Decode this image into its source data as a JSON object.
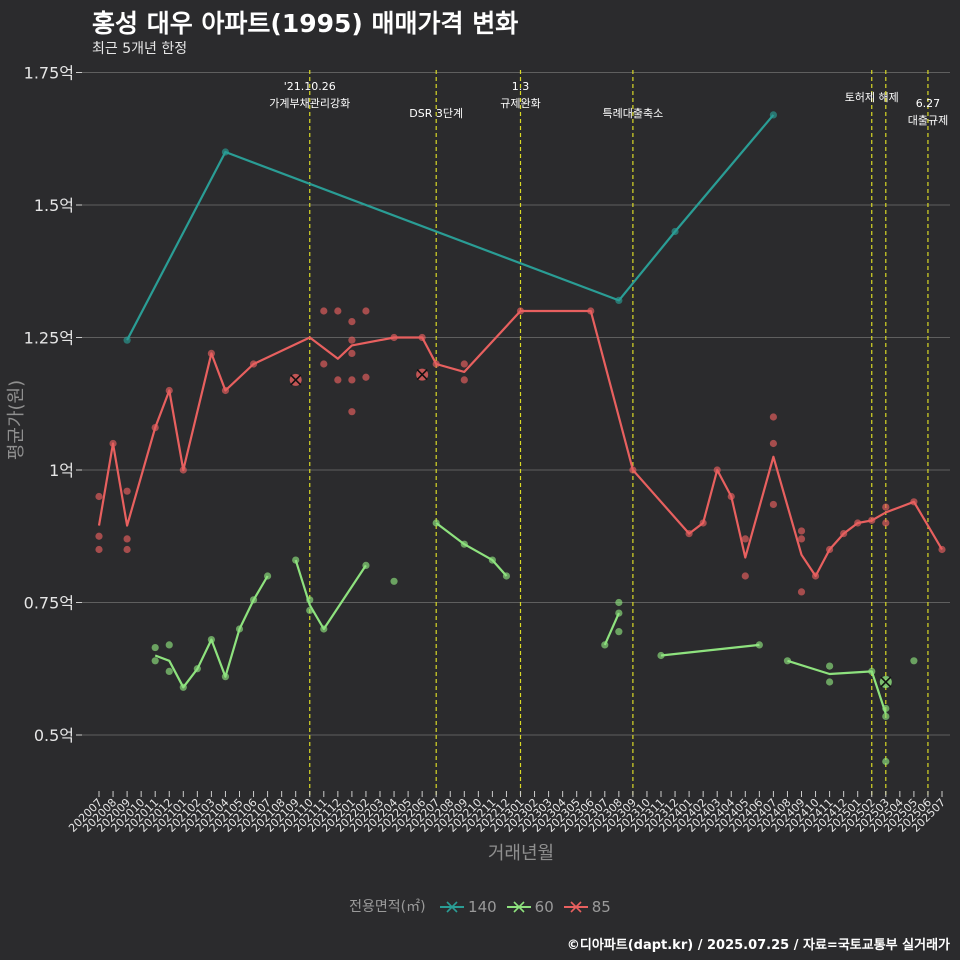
{
  "chart_data": {
    "type": "line",
    "title": "홍성 대우 아파트(1995) 매매가격 변화",
    "subtitle": "최근 5개년 한정",
    "xlabel": "거래년월",
    "ylabel": "평균가(원)",
    "caption": "©디아파트(dapt.kr) / 2025.07.25 / 자료=국토교통부 실거래가",
    "legend_title": "전용면적(㎡)",
    "legend_position": "bottom",
    "grid": true,
    "ylim": [
      0.4,
      1.77
    ],
    "y_ticks": [
      {
        "value": 0.5,
        "label": "0.5억"
      },
      {
        "value": 0.75,
        "label": "0.75억"
      },
      {
        "value": 1.0,
        "label": "1억"
      },
      {
        "value": 1.25,
        "label": "1.25억"
      },
      {
        "value": 1.5,
        "label": "1.5억"
      },
      {
        "value": 1.75,
        "label": "1.75억"
      }
    ],
    "categories": [
      "202007",
      "202008",
      "202009",
      "202010",
      "202011",
      "202012",
      "202101",
      "202102",
      "202103",
      "202104",
      "202105",
      "202106",
      "202107",
      "202108",
      "202109",
      "202110",
      "202111",
      "202112",
      "202201",
      "202202",
      "202203",
      "202204",
      "202205",
      "202206",
      "202207",
      "202208",
      "202209",
      "202210",
      "202211",
      "202212",
      "202301",
      "202302",
      "202303",
      "202304",
      "202305",
      "202306",
      "202307",
      "202308",
      "202309",
      "202310",
      "202311",
      "202312",
      "202401",
      "202402",
      "202403",
      "202404",
      "202405",
      "202406",
      "202407",
      "202408",
      "202409",
      "202410",
      "202411",
      "202412",
      "202501",
      "202502",
      "202503",
      "202504",
      "202505",
      "202506",
      "202507"
    ],
    "events": [
      {
        "x": "202110",
        "label": "'21.10.26\n가계부채관리강화",
        "row": 0
      },
      {
        "x": "202207",
        "label": "DSR 3단계",
        "row": 2
      },
      {
        "x": "202301",
        "label": "1.3\n규제완화",
        "row": 0
      },
      {
        "x": "202309",
        "label": "특례대출축소",
        "row": 2
      },
      {
        "x": "202502",
        "label": "토허제 해제",
        "row": 1
      },
      {
        "x": "202503",
        "label": "",
        "row": 1
      },
      {
        "x": "202506",
        "label": "6.27\n대출규제",
        "row": 1.5
      }
    ],
    "series": [
      {
        "name": "140",
        "color": "#2a9d95",
        "line": [
          [
            "202009",
            1.245
          ],
          [
            "202104",
            1.6
          ],
          [
            "202308",
            1.32
          ],
          [
            "202312",
            1.45
          ],
          [
            "202407",
            1.67
          ]
        ],
        "points": [
          [
            "202009",
            1.245
          ],
          [
            "202104",
            1.6
          ],
          [
            "202308",
            1.32
          ],
          [
            "202312",
            1.45
          ],
          [
            "202407",
            1.67
          ]
        ],
        "cancelled": []
      },
      {
        "name": "60",
        "color": "#8ee27e",
        "line": [
          [
            [
              "202011",
              0.65
            ],
            [
              "202012",
              0.64
            ],
            [
              "202101",
              0.59
            ],
            [
              "202102",
              0.625
            ],
            [
              "202103",
              0.68
            ],
            [
              "202104",
              0.61
            ],
            [
              "202105",
              0.7
            ],
            [
              "202106",
              0.755
            ],
            [
              "202107",
              0.8
            ]
          ],
          [
            [
              "202109",
              0.83
            ],
            [
              "202110",
              0.745
            ],
            [
              "202111",
              0.7
            ],
            [
              "202202",
              0.82
            ]
          ],
          [
            [
              "202207",
              0.9
            ],
            [
              "202209",
              0.86
            ],
            [
              "202211",
              0.83
            ],
            [
              "202212",
              0.8
            ]
          ],
          [
            [
              "202307",
              0.67
            ],
            [
              "202308",
              0.73
            ]
          ],
          [
            [
              "202311",
              0.65
            ],
            [
              "202406",
              0.67
            ]
          ],
          [
            [
              "202408",
              0.64
            ],
            [
              "202411",
              0.615
            ],
            [
              "202502",
              0.62
            ],
            [
              "202503",
              0.54
            ]
          ]
        ],
        "points": [
          [
            "202011",
            0.665
          ],
          [
            "202011",
            0.64
          ],
          [
            "202012",
            0.67
          ],
          [
            "202012",
            0.62
          ],
          [
            "202101",
            0.59
          ],
          [
            "202102",
            0.625
          ],
          [
            "202103",
            0.68
          ],
          [
            "202104",
            0.61
          ],
          [
            "202105",
            0.7
          ],
          [
            "202106",
            0.755
          ],
          [
            "202107",
            0.8
          ],
          [
            "202109",
            0.83
          ],
          [
            "202110",
            0.755
          ],
          [
            "202110",
            0.735
          ],
          [
            "202111",
            0.7
          ],
          [
            "202202",
            0.82
          ],
          [
            "202204",
            0.79
          ],
          [
            "202207",
            0.9
          ],
          [
            "202209",
            0.86
          ],
          [
            "202211",
            0.83
          ],
          [
            "202212",
            0.8
          ],
          [
            "202307",
            0.67
          ],
          [
            "202308",
            0.73
          ],
          [
            "202308",
            0.75
          ],
          [
            "202308",
            0.695
          ],
          [
            "202311",
            0.65
          ],
          [
            "202406",
            0.67
          ],
          [
            "202408",
            0.64
          ],
          [
            "202411",
            0.63
          ],
          [
            "202411",
            0.6
          ],
          [
            "202502",
            0.62
          ],
          [
            "202503",
            0.55
          ],
          [
            "202503",
            0.535
          ],
          [
            "202503",
            0.45
          ],
          [
            "202505",
            0.64
          ]
        ],
        "cancelled": [
          [
            "202503",
            0.6
          ]
        ]
      },
      {
        "name": "85",
        "color": "#e8605f",
        "line": [
          [
            "202007",
            0.895
          ],
          [
            "202008",
            1.05
          ],
          [
            "202009",
            0.895
          ],
          [
            "202011",
            1.08
          ],
          [
            "202012",
            1.15
          ],
          [
            "202101",
            1.0
          ],
          [
            "202103",
            1.22
          ],
          [
            "202104",
            1.15
          ],
          [
            "202106",
            1.2
          ],
          [
            "202110",
            1.25
          ],
          [
            "202112",
            1.21
          ],
          [
            "202201",
            1.235
          ],
          [
            "202204",
            1.25
          ],
          [
            "202206",
            1.25
          ],
          [
            "202207",
            1.2
          ],
          [
            "202209",
            1.185
          ],
          [
            "202301",
            1.3
          ],
          [
            "202306",
            1.3
          ],
          [
            "202309",
            1.0
          ],
          [
            "202401",
            0.88
          ],
          [
            "202402",
            0.9
          ],
          [
            "202403",
            1.0
          ],
          [
            "202404",
            0.95
          ],
          [
            "202405",
            0.835
          ],
          [
            "202407",
            1.025
          ],
          [
            "202409",
            0.84
          ],
          [
            "202410",
            0.8
          ],
          [
            "202411",
            0.85
          ],
          [
            "202412",
            0.88
          ],
          [
            "202501",
            0.9
          ],
          [
            "202502",
            0.905
          ],
          [
            "202503",
            0.92
          ],
          [
            "202504",
            0.93
          ],
          [
            "202505",
            0.94
          ],
          [
            "202507",
            0.85
          ]
        ],
        "points": [
          [
            "202007",
            0.95
          ],
          [
            "202007",
            0.875
          ],
          [
            "202007",
            0.85
          ],
          [
            "202008",
            1.05
          ],
          [
            "202009",
            0.96
          ],
          [
            "202009",
            0.87
          ],
          [
            "202009",
            0.85
          ],
          [
            "202011",
            1.08
          ],
          [
            "202012",
            1.15
          ],
          [
            "202101",
            1.0
          ],
          [
            "202103",
            1.22
          ],
          [
            "202104",
            1.15
          ],
          [
            "202106",
            1.2
          ],
          [
            "202111",
            1.3
          ],
          [
            "202111",
            1.2
          ],
          [
            "202112",
            1.3
          ],
          [
            "202112",
            1.17
          ],
          [
            "202201",
            1.28
          ],
          [
            "202201",
            1.245
          ],
          [
            "202201",
            1.22
          ],
          [
            "202201",
            1.17
          ],
          [
            "202201",
            1.11
          ],
          [
            "202202",
            1.3
          ],
          [
            "202202",
            1.175
          ],
          [
            "202204",
            1.25
          ],
          [
            "202206",
            1.25
          ],
          [
            "202207",
            1.2
          ],
          [
            "202209",
            1.2
          ],
          [
            "202209",
            1.17
          ],
          [
            "202301",
            1.3
          ],
          [
            "202306",
            1.3
          ],
          [
            "202309",
            1.0
          ],
          [
            "202401",
            0.88
          ],
          [
            "202402",
            0.9
          ],
          [
            "202403",
            1.0
          ],
          [
            "202404",
            0.95
          ],
          [
            "202405",
            0.87
          ],
          [
            "202405",
            0.8
          ],
          [
            "202407",
            1.1
          ],
          [
            "202407",
            1.05
          ],
          [
            "202407",
            0.935
          ],
          [
            "202409",
            0.885
          ],
          [
            "202409",
            0.87
          ],
          [
            "202409",
            0.77
          ],
          [
            "202410",
            0.8
          ],
          [
            "202411",
            0.85
          ],
          [
            "202412",
            0.88
          ],
          [
            "202501",
            0.9
          ],
          [
            "202502",
            0.905
          ],
          [
            "202503",
            0.93
          ],
          [
            "202503",
            0.9
          ],
          [
            "202505",
            0.94
          ],
          [
            "202507",
            0.85
          ]
        ],
        "cancelled": [
          [
            "202109",
            1.17
          ],
          [
            "202206",
            1.18
          ]
        ]
      }
    ]
  }
}
